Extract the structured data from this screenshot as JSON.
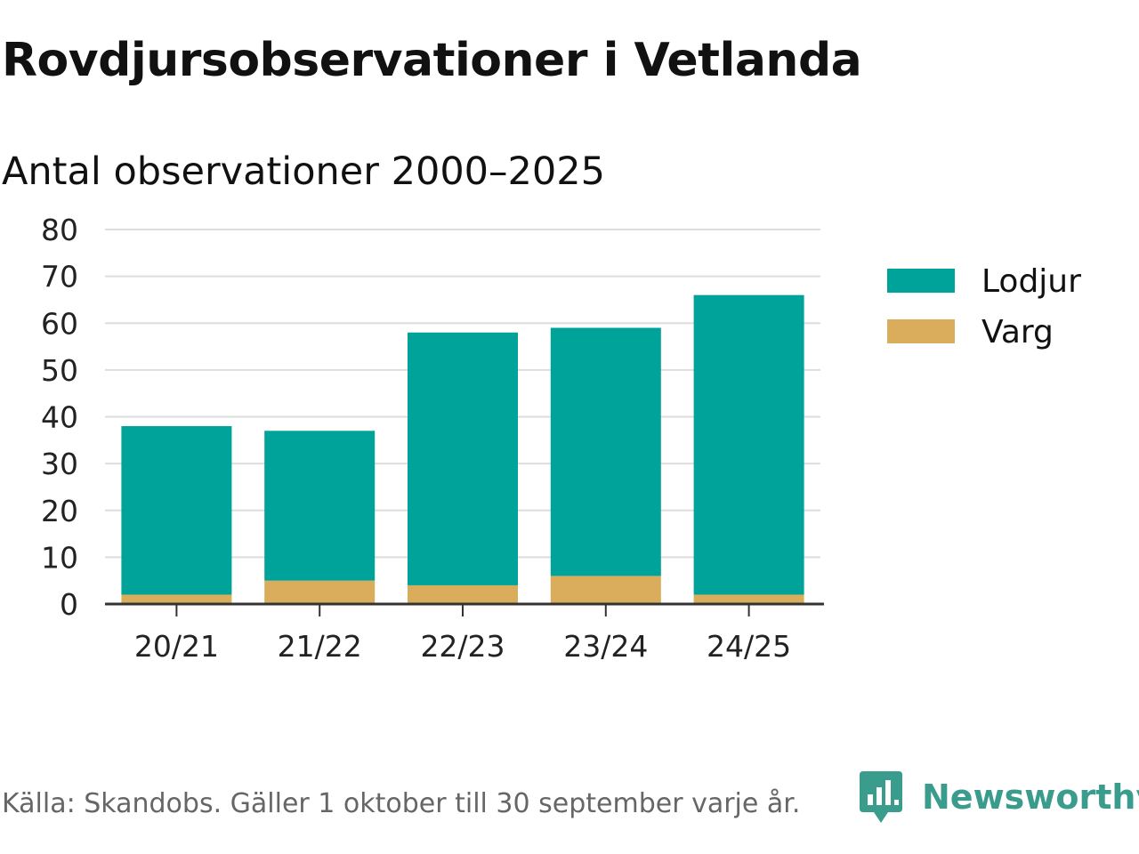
{
  "title": "Rovdjursobservationer i Vetlanda",
  "subtitle": "Antal observationer 2000–2025",
  "source": "Källa: Skandobs. Gäller 1 oktober till 30 september varje år.",
  "brand": {
    "name": "Newsworthy",
    "color": "#3a9c8c"
  },
  "chart_data": {
    "type": "bar",
    "stacked": true,
    "categories": [
      "20/21",
      "21/22",
      "22/23",
      "23/24",
      "24/25"
    ],
    "series": [
      {
        "name": "Varg",
        "values": [
          2,
          5,
          4,
          6,
          2
        ],
        "color": "#d9ad5b"
      },
      {
        "name": "Lodjur",
        "values": [
          36,
          32,
          54,
          53,
          64
        ],
        "color": "#00a39a"
      }
    ],
    "legend_order": [
      "Lodjur",
      "Varg"
    ],
    "ylim": [
      0,
      80
    ],
    "yticks": [
      0,
      10,
      20,
      30,
      40,
      50,
      60,
      70,
      80
    ],
    "ytick_labels": [
      "0",
      "10",
      "20",
      "30",
      "40",
      "50",
      "60",
      "70",
      "80"
    ],
    "xlabel": "",
    "ylabel": "",
    "grid": true,
    "legend_position": "right"
  }
}
